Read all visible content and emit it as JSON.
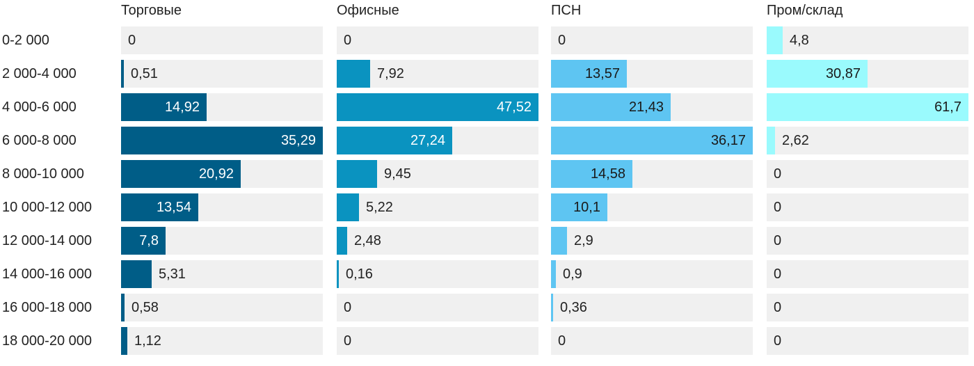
{
  "chart_data": {
    "type": "bar",
    "orientation": "horizontal",
    "layout": "small-multiples",
    "categories": [
      "0-2 000",
      "2 000-4 000",
      "4 000-6 000",
      "6 000-8 000",
      "8 000-10 000",
      "10 000-12 000",
      "12 000-14 000",
      "14 000-16 000",
      "16 000-18 000",
      "18 000-20 000"
    ],
    "series": [
      {
        "name": "Торговые",
        "color": "#005d87",
        "label_color_inside": "#ffffff",
        "values": [
          0,
          0.51,
          14.92,
          35.29,
          20.92,
          13.54,
          7.8,
          5.31,
          0.58,
          1.12
        ],
        "labels": [
          "0",
          "0,51",
          "14,92",
          "35,29",
          "20,92",
          "13,54",
          "7,8",
          "5,31",
          "0,58",
          "1,12"
        ]
      },
      {
        "name": "Офисные",
        "color": "#0a93c0",
        "label_color_inside": "#ffffff",
        "values": [
          0,
          7.92,
          47.52,
          27.24,
          9.45,
          5.22,
          2.48,
          0.16,
          0,
          0
        ],
        "labels": [
          "0",
          "7,92",
          "47,52",
          "27,24",
          "9,45",
          "5,22",
          "2,48",
          "0,16",
          "0",
          "0"
        ]
      },
      {
        "name": "ПСН",
        "color": "#5ec5f2",
        "label_color_inside": "#1a1a1a",
        "values": [
          0,
          13.57,
          21.43,
          36.17,
          14.58,
          10.1,
          2.9,
          0.9,
          0.36,
          0
        ],
        "labels": [
          "0",
          "13,57",
          "21,43",
          "36,17",
          "14,58",
          "10,1",
          "2,9",
          "0,9",
          "0,36",
          "0"
        ]
      },
      {
        "name": "Пром/склад",
        "color": "#9afafd",
        "label_color_inside": "#1a1a1a",
        "values": [
          4.8,
          30.87,
          61.7,
          2.62,
          0,
          0,
          0,
          0,
          0,
          0
        ],
        "labels": [
          "4,8",
          "30,87",
          "61,7",
          "2,62",
          "0",
          "0",
          "0",
          "0",
          "0",
          "0"
        ]
      }
    ],
    "axis_max_per_panel": [
      35.29,
      47.52,
      36.17,
      61.7
    ],
    "track_color": "#f0f0f0",
    "label_color_outside": "#222222",
    "grid": false,
    "legend": "none"
  }
}
